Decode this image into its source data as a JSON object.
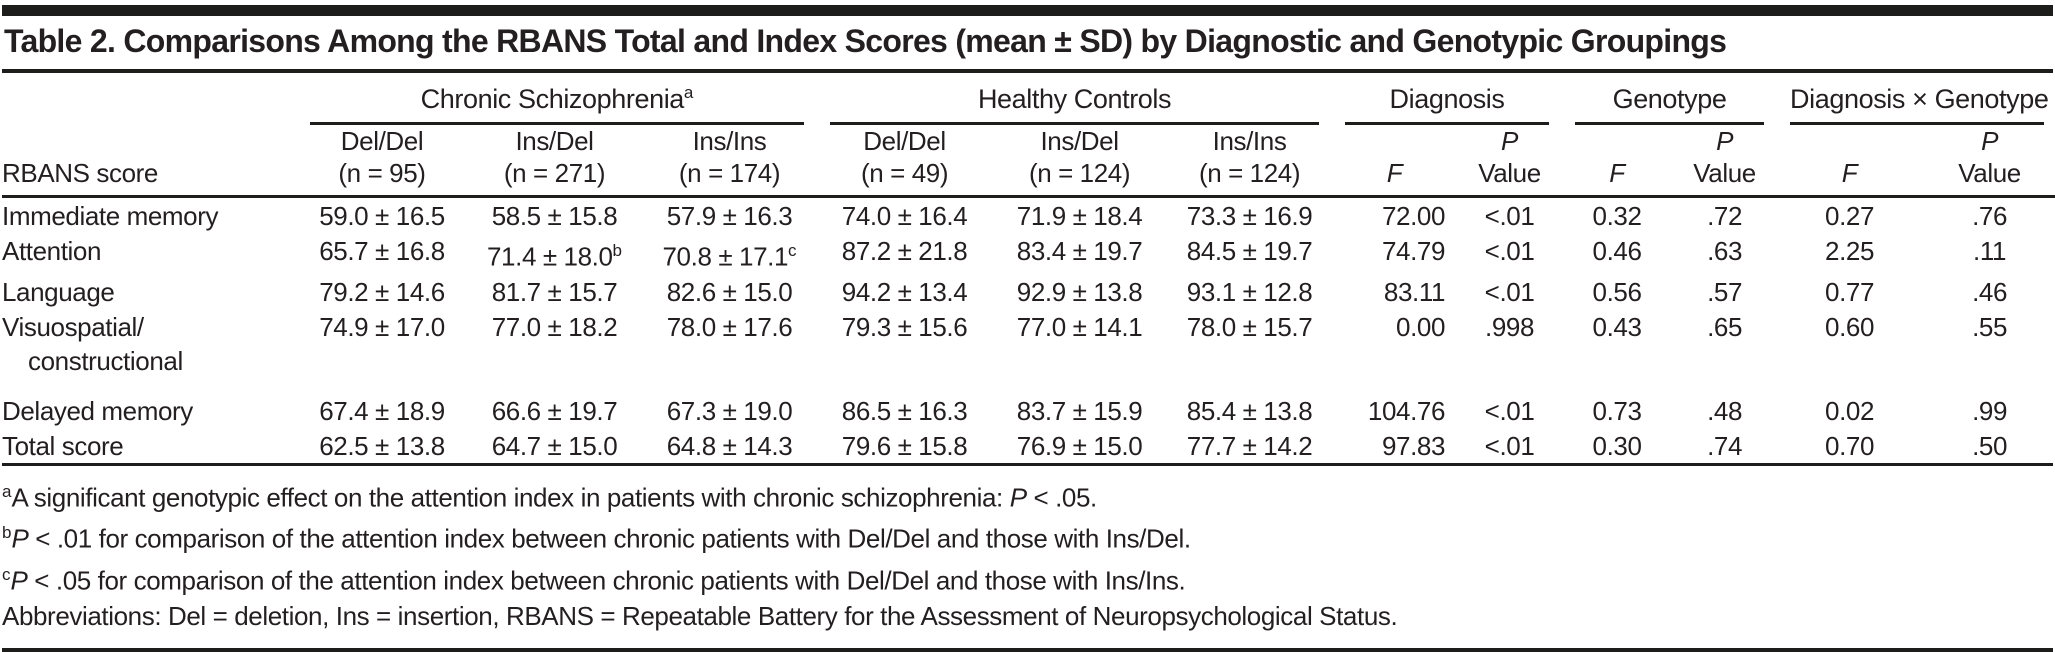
{
  "title": "Table 2. Comparisons Among the RBANS Total and Index Scores (mean ± SD) by Diagnostic and Genotypic Groupings",
  "table": {
    "row_header_label": "RBANS score",
    "groups": [
      {
        "label": "Chronic Schizophrenia",
        "sup": "a"
      },
      {
        "label": "Healthy Controls",
        "sup": ""
      },
      {
        "label": "Diagnosis",
        "sup": ""
      },
      {
        "label": "Genotype",
        "sup": ""
      },
      {
        "label": "Diagnosis × Genotype",
        "sup": ""
      }
    ],
    "subheaders": [
      {
        "line1": "Del/Del",
        "line2": "(n = 95)"
      },
      {
        "line1": "Ins/Del",
        "line2": "(n = 271)"
      },
      {
        "line1": "Ins/Ins",
        "line2": "(n = 174)"
      },
      {
        "line1": "Del/Del",
        "line2": "(n = 49)"
      },
      {
        "line1": "Ins/Del",
        "line2": "(n = 124)"
      },
      {
        "line1": "Ins/Ins",
        "line2": "(n = 124)"
      },
      {
        "line1": "",
        "line2": "F"
      },
      {
        "line1": "P",
        "line2": "Value"
      },
      {
        "line1": "",
        "line2": "F"
      },
      {
        "line1": "P",
        "line2": "Value"
      },
      {
        "line1": "",
        "line2": "F"
      },
      {
        "line1": "P",
        "line2": "Value"
      }
    ],
    "rows": [
      {
        "label": "Immediate memory",
        "label2": "",
        "cells": [
          {
            "v": "59.0 ± 16.5"
          },
          {
            "v": "58.5 ± 15.8"
          },
          {
            "v": "57.9 ± 16.3"
          },
          {
            "v": "74.0 ± 16.4"
          },
          {
            "v": "71.9 ± 18.4"
          },
          {
            "v": "73.3 ± 16.9"
          },
          {
            "v": "72.00"
          },
          {
            "v": "<.01"
          },
          {
            "v": "0.32"
          },
          {
            "v": ".72"
          },
          {
            "v": "0.27"
          },
          {
            "v": ".76"
          }
        ]
      },
      {
        "label": "Attention",
        "label2": "",
        "cells": [
          {
            "v": "65.7 ± 16.8"
          },
          {
            "v": "71.4 ± 18.0",
            "sup": "b"
          },
          {
            "v": "70.8 ± 17.1",
            "sup": "c"
          },
          {
            "v": "87.2 ± 21.8"
          },
          {
            "v": "83.4 ± 19.7"
          },
          {
            "v": "84.5 ± 19.7"
          },
          {
            "v": "74.79"
          },
          {
            "v": "<.01"
          },
          {
            "v": "0.46"
          },
          {
            "v": ".63"
          },
          {
            "v": "2.25"
          },
          {
            "v": ".11"
          }
        ]
      },
      {
        "label": "Language",
        "label2": "",
        "cells": [
          {
            "v": "79.2 ± 14.6"
          },
          {
            "v": "81.7 ± 15.7"
          },
          {
            "v": "82.6 ± 15.0"
          },
          {
            "v": "94.2 ± 13.4"
          },
          {
            "v": "92.9 ± 13.8"
          },
          {
            "v": "93.1 ± 12.8"
          },
          {
            "v": "83.11"
          },
          {
            "v": "<.01"
          },
          {
            "v": "0.56"
          },
          {
            "v": ".57"
          },
          {
            "v": "0.77"
          },
          {
            "v": ".46"
          }
        ]
      },
      {
        "label": "Visuospatial/",
        "label2": "constructional",
        "cells": [
          {
            "v": "74.9 ± 17.0"
          },
          {
            "v": "77.0 ± 18.2"
          },
          {
            "v": "78.0 ± 17.6"
          },
          {
            "v": "79.3 ± 15.6"
          },
          {
            "v": "77.0 ± 14.1"
          },
          {
            "v": "78.0 ± 15.7"
          },
          {
            "v": "0.00"
          },
          {
            "v": ".998"
          },
          {
            "v": "0.43"
          },
          {
            "v": ".65"
          },
          {
            "v": "0.60"
          },
          {
            "v": ".55"
          }
        ]
      },
      {
        "label": "Delayed memory",
        "label2": "",
        "cells": [
          {
            "v": "67.4 ± 18.9"
          },
          {
            "v": "66.6 ± 19.7"
          },
          {
            "v": "67.3 ± 19.0"
          },
          {
            "v": "86.5 ± 16.3"
          },
          {
            "v": "83.7 ± 15.9"
          },
          {
            "v": "85.4 ± 13.8"
          },
          {
            "v": "104.76"
          },
          {
            "v": "<.01"
          },
          {
            "v": "0.73"
          },
          {
            "v": ".48"
          },
          {
            "v": "0.02"
          },
          {
            "v": ".99"
          }
        ]
      },
      {
        "label": "Total score",
        "label2": "",
        "cells": [
          {
            "v": "62.5 ± 13.8"
          },
          {
            "v": "64.7 ± 15.0"
          },
          {
            "v": "64.8 ± 14.3"
          },
          {
            "v": "79.6 ± 15.8"
          },
          {
            "v": "76.9 ± 15.0"
          },
          {
            "v": "77.7 ± 14.2"
          },
          {
            "v": "97.83"
          },
          {
            "v": "<.01"
          },
          {
            "v": "0.30"
          },
          {
            "v": ".74"
          },
          {
            "v": "0.70"
          },
          {
            "v": ".50"
          }
        ]
      }
    ]
  },
  "footnotes": [
    {
      "sup": "a",
      "segments": [
        {
          "t": "A significant genotypic effect on the attention index in patients with chronic schizophrenia: "
        },
        {
          "t": "P",
          "i": true
        },
        {
          "t": " < .05."
        }
      ]
    },
    {
      "sup": "b",
      "segments": [
        {
          "t": "P",
          "i": true
        },
        {
          "t": " < .01 for comparison of the attention index between chronic patients with Del/Del and those with Ins/Del."
        }
      ]
    },
    {
      "sup": "c",
      "segments": [
        {
          "t": "P",
          "i": true
        },
        {
          "t": " < .05 for comparison of the attention index between chronic patients with Del/Del and those with Ins/Ins."
        }
      ]
    },
    {
      "sup": "",
      "segments": [
        {
          "t": "Abbreviations: Del = deletion, Ins = insertion, RBANS = Repeatable Battery for the Assessment of Neuropsychological Status."
        }
      ]
    }
  ],
  "colors": {
    "text": "#231f20",
    "rule": "#1d1d1b",
    "background": "#ffffff"
  }
}
